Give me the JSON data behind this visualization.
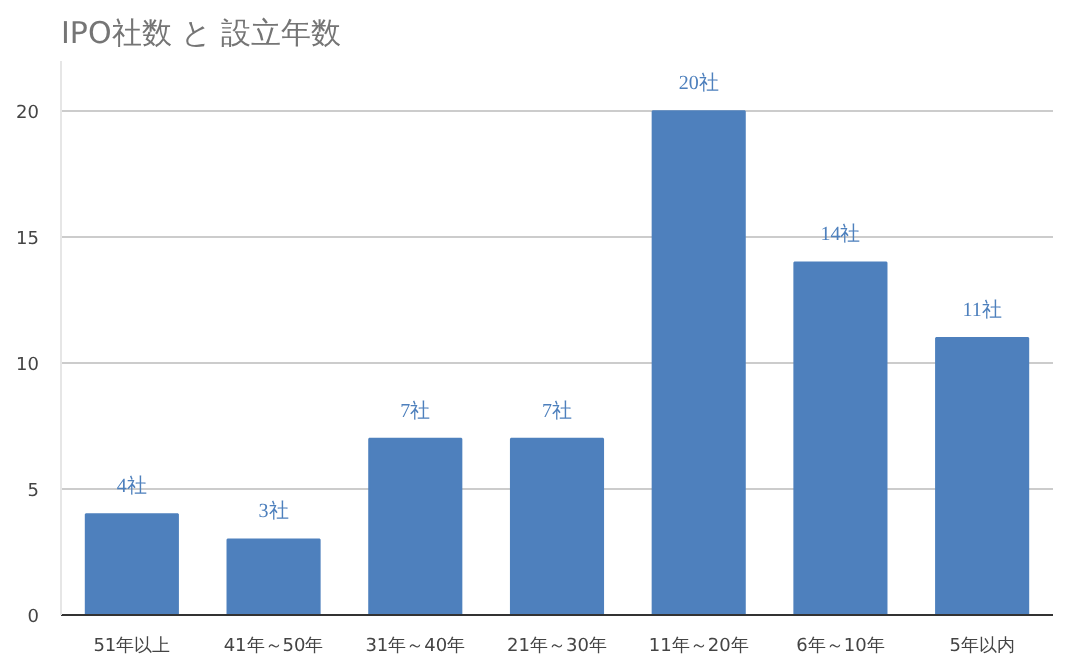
{
  "chart_data": {
    "type": "bar",
    "title": "IPO社数 と 設立年数",
    "categories": [
      "51年以上",
      "41年～50年",
      "31年～40年",
      "21年～30年",
      "11年～20年",
      "6年～10年",
      "5年以内"
    ],
    "values": [
      4,
      3,
      7,
      7,
      20,
      14,
      11
    ],
    "value_labels": [
      "4社",
      "3社",
      "7社",
      "7社",
      "20社",
      "14社",
      "11社"
    ],
    "color": "#4e80bd",
    "ylim": [
      0,
      22
    ],
    "yticks": [
      0,
      5,
      10,
      15,
      20
    ],
    "grid": "y"
  }
}
